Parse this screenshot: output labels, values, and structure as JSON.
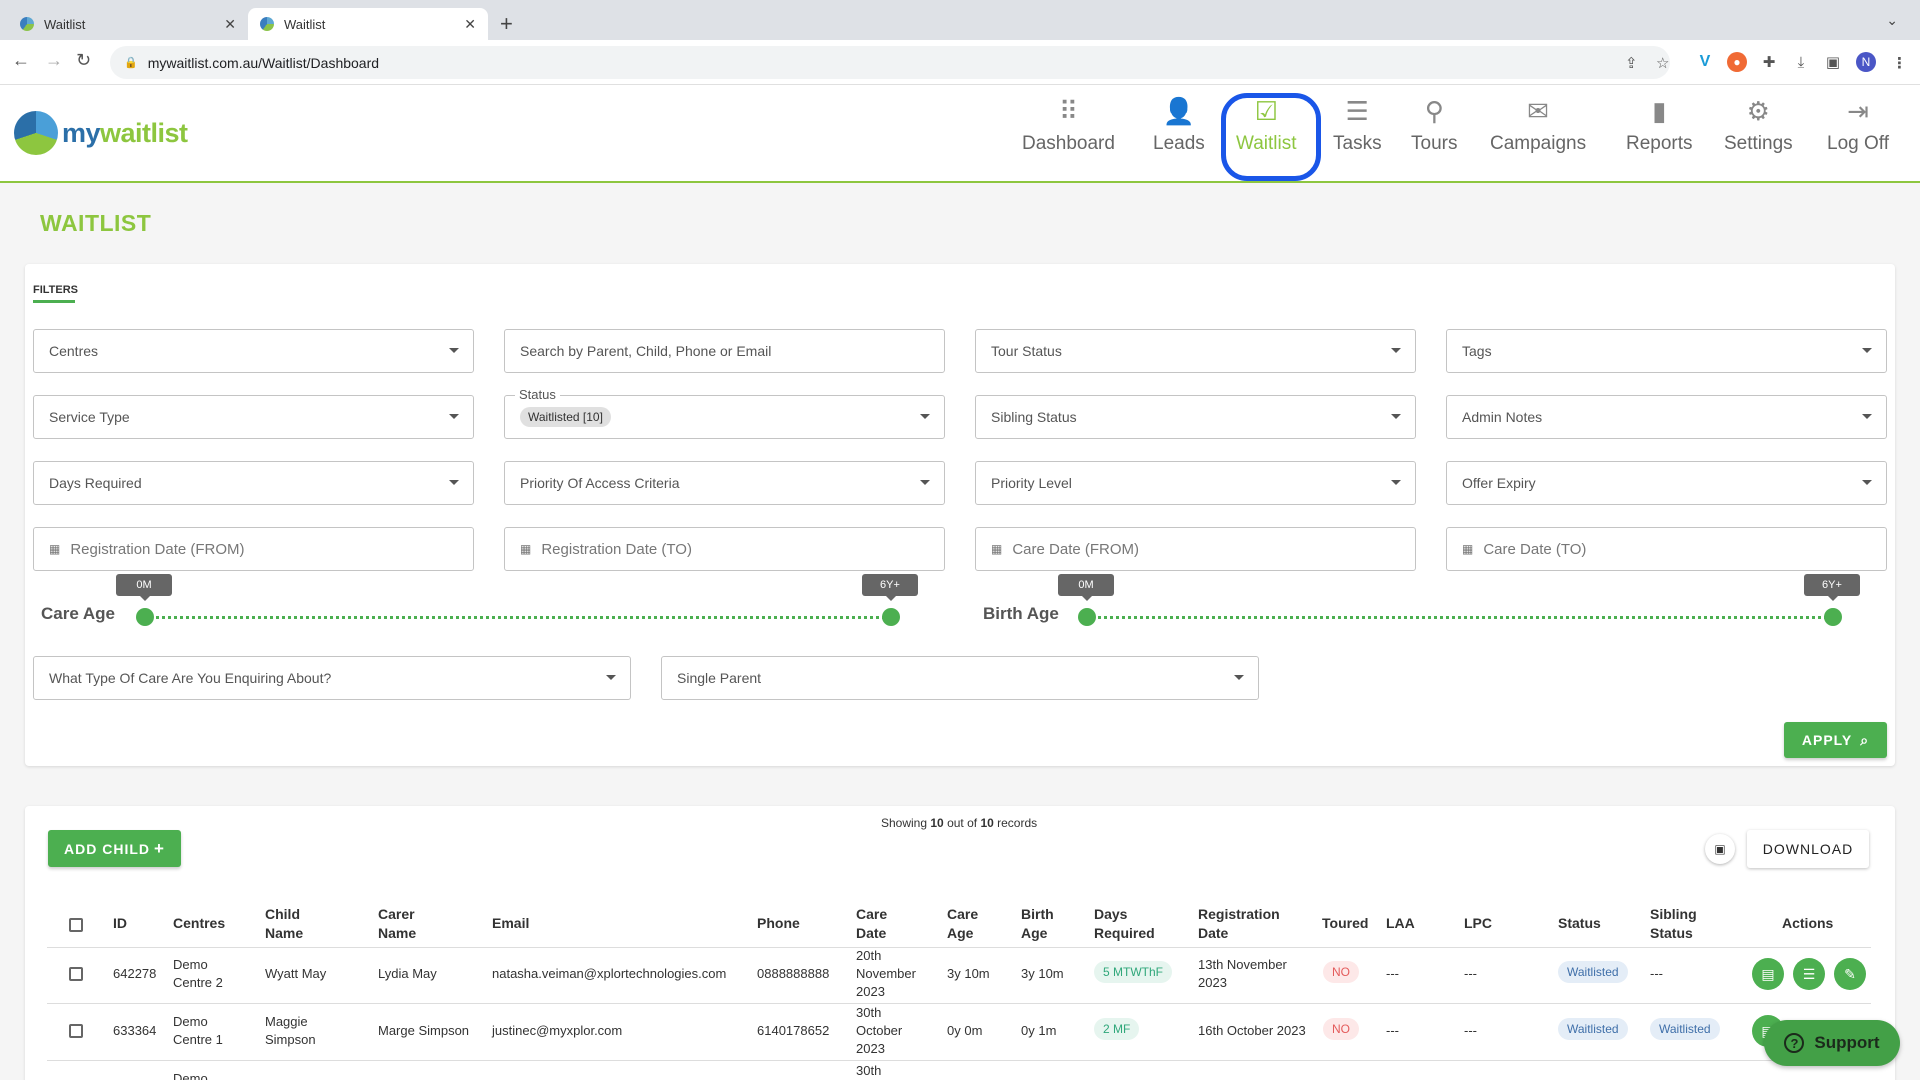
{
  "browser": {
    "tabs": [
      {
        "title": "Waitlist"
      },
      {
        "title": "Waitlist"
      }
    ],
    "url": "mywaitlist.com.au/Waitlist/Dashboard",
    "profile_initial": "N"
  },
  "app": {
    "logo": "mywaitlist",
    "nav": [
      {
        "label": "Dashboard",
        "icon": "dashboard-grid-icon"
      },
      {
        "label": "Leads",
        "icon": "add-user-icon"
      },
      {
        "label": "Waitlist",
        "icon": "inbox-check-icon",
        "active": true
      },
      {
        "label": "Tasks",
        "icon": "list-icon"
      },
      {
        "label": "Tours",
        "icon": "map-pin-icon"
      },
      {
        "label": "Campaigns",
        "icon": "envelope-check-icon"
      },
      {
        "label": "Reports",
        "icon": "bar-chart-icon"
      },
      {
        "label": "Settings",
        "icon": "gear-icon"
      },
      {
        "label": "Log Off",
        "icon": "logout-icon"
      }
    ]
  },
  "page": {
    "title": "WAITLIST"
  },
  "filters": {
    "label": "FILTERS",
    "centres": "Centres",
    "search_placeholder": "Search by Parent, Child, Phone or Email",
    "tour_status": "Tour Status",
    "tags": "Tags",
    "service_type": "Service Type",
    "status_label": "Status",
    "status_chip": "Waitlisted [10]",
    "sibling_status": "Sibling Status",
    "admin_notes": "Admin Notes",
    "days_required": "Days Required",
    "priority_access": "Priority Of Access Criteria",
    "priority_level": "Priority Level",
    "offer_expiry": "Offer Expiry",
    "reg_from": "Registration Date (FROM)",
    "reg_to": "Registration Date (TO)",
    "care_from": "Care Date (FROM)",
    "care_to": "Care Date (TO)",
    "care_age": {
      "label": "Care Age",
      "min": "0M",
      "max": "6Y+"
    },
    "birth_age": {
      "label": "Birth Age",
      "min": "0M",
      "max": "6Y+"
    },
    "care_type": "What Type Of Care Are You Enquiring About?",
    "single_parent": "Single Parent",
    "apply": "APPLY"
  },
  "table": {
    "showing_prefix": "Showing ",
    "showing_count": "10",
    "showing_mid": " out of ",
    "showing_total": "10",
    "showing_suffix": " records",
    "add_child": "ADD CHILD",
    "download": "DOWNLOAD",
    "headers": {
      "id": "ID",
      "centres": "Centres",
      "child1": "Child",
      "child2": "Name",
      "carer1": "Carer",
      "carer2": "Name",
      "email": "Email",
      "phone": "Phone",
      "cdate1": "Care",
      "cdate2": "Date",
      "cage1": "Care",
      "cage2": "Age",
      "bage1": "Birth",
      "bage2": "Age",
      "days1": "Days",
      "days2": "Required",
      "reg1": "Registration",
      "reg2": "Date",
      "toured": "Toured",
      "laa": "LAA",
      "lpc": "LPC",
      "status": "Status",
      "sib1": "Sibling",
      "sib2": "Status",
      "actions": "Actions"
    },
    "rows": [
      {
        "id": "642278",
        "centre1": "Demo",
        "centre2": "Centre 2",
        "child1": "Wyatt May",
        "child2": "",
        "carer": "Lydia May",
        "email": "natasha.veiman@xplortechnologies.com",
        "phone": "0888888888",
        "cd1": "20th",
        "cd2": "November",
        "cd3": "2023",
        "care_age": "3y 10m",
        "birth_age": "3y 10m",
        "days": "5 MTWThF",
        "reg1": "13th November",
        "reg2": "2023",
        "toured": "NO",
        "laa": "---",
        "lpc": "---",
        "status": "Waitlisted",
        "sibling": "---"
      },
      {
        "id": "633364",
        "centre1": "Demo",
        "centre2": "Centre 1",
        "child1": "Maggie",
        "child2": "Simpson",
        "carer": "Marge Simpson",
        "email": "justinec@myxplor.com",
        "phone": "6140178652",
        "cd1": "30th",
        "cd2": "October",
        "cd3": "2023",
        "care_age": "0y 0m",
        "birth_age": "0y 1m",
        "days": "2 MF",
        "reg1": "16th October 2023",
        "reg2": "",
        "toured": "NO",
        "laa": "---",
        "lpc": "---",
        "status": "Waitlisted",
        "sibling": "Waitlisted"
      },
      {
        "centre1": "Demo",
        "cd1": "30th"
      }
    ]
  },
  "support": "Support"
}
